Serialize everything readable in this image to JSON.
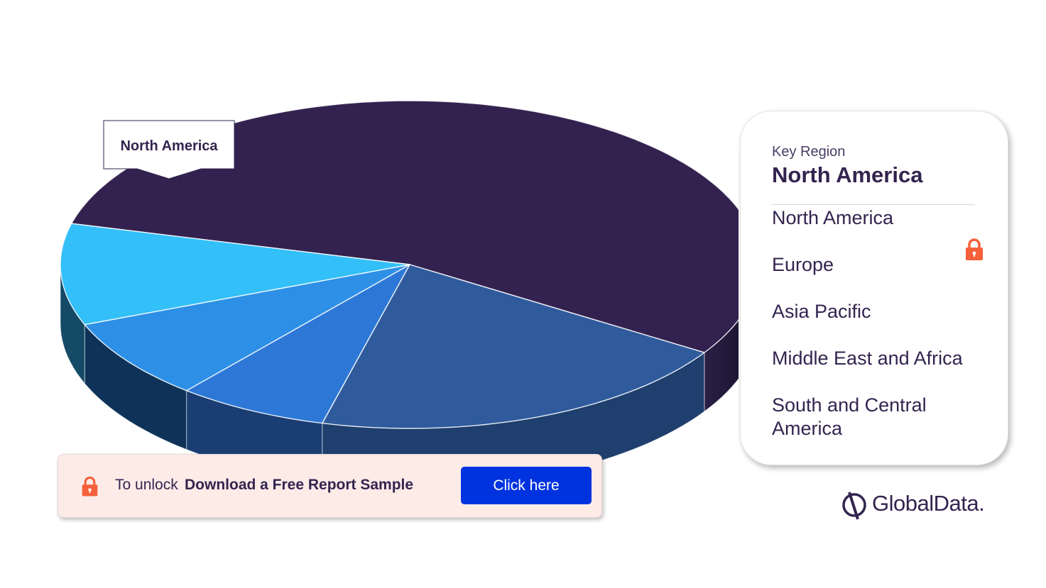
{
  "chart_data": {
    "type": "pie",
    "style": "3d",
    "categories": [
      "North America",
      "Europe",
      "Asia Pacific",
      "Middle East and Africa",
      "South and Central America"
    ],
    "values": [
      55,
      20,
      7,
      8,
      10
    ],
    "colors": [
      "#33224f",
      "#2f5b9d",
      "#2d78d6",
      "#2d90e6",
      "#33bff8"
    ],
    "side_colors": [
      "#23193b",
      "#1f3f6e",
      "#1a3d74",
      "#0f3358",
      "#154a66"
    ],
    "highlighted": "North America",
    "title": "",
    "legend_position": "right"
  },
  "callout": {
    "label": "North America"
  },
  "legend": {
    "kicker": "Key Region",
    "heading": "North America",
    "items": [
      "North America",
      "Europe",
      "Asia Pacific",
      "Middle East and Africa",
      "South and Central America"
    ],
    "lock_icon": "lock-icon",
    "lock_color": "#f5603a"
  },
  "unlock_bar": {
    "prefix": "To unlock",
    "strong": "Download a Free Report Sample",
    "button_label": "Click here",
    "button_color": "#0033e0",
    "lock_icon": "lock-icon"
  },
  "brand": {
    "name": "GlobalData.",
    "logo_icon": "globaldata-logo-icon"
  }
}
